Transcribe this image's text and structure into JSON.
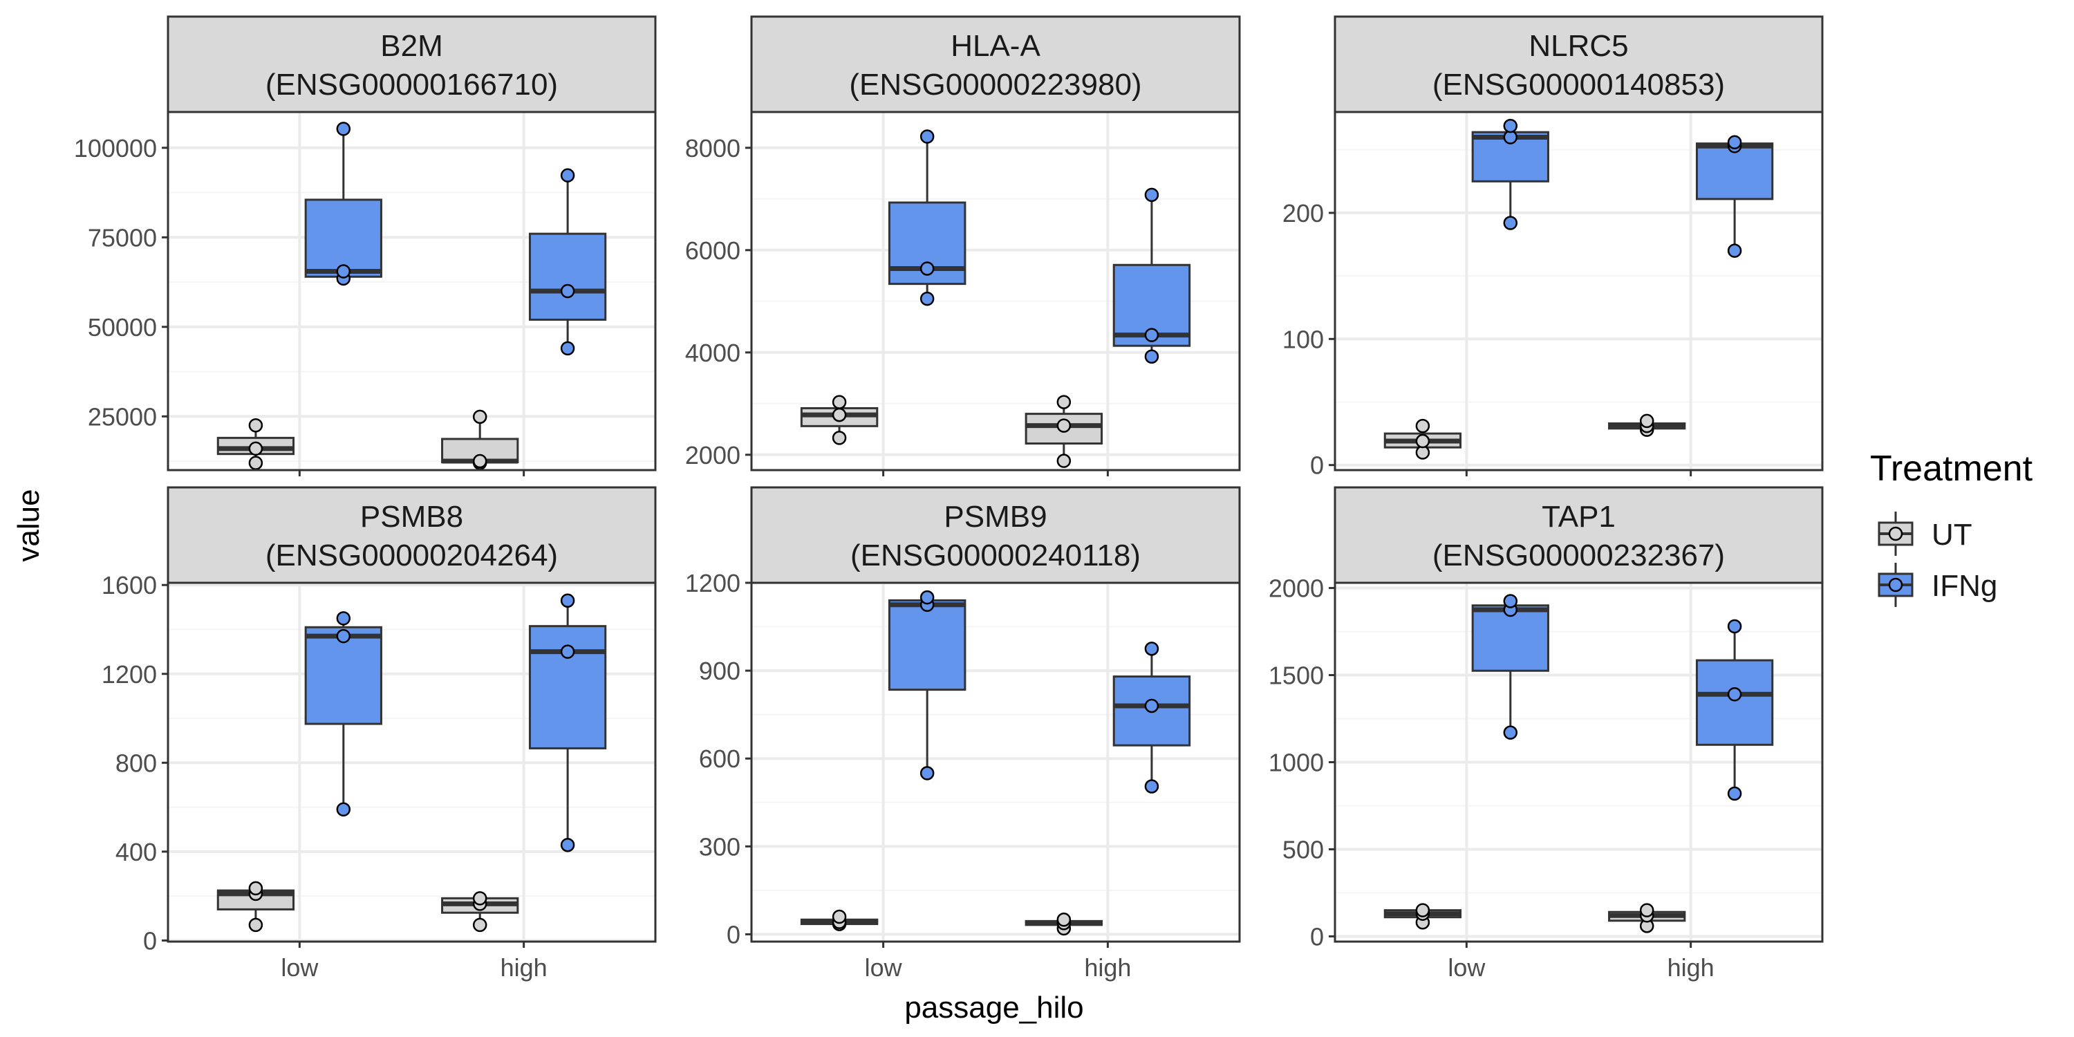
{
  "colors": {
    "UT": "#d4d4d4",
    "IFNg": "#6495ed",
    "strip_bg": "#d9d9d9",
    "grid_major": "#ebebeb",
    "grid_minor": "#f5f5f5",
    "frame": "#333333"
  },
  "chart_data": {
    "type": "box",
    "xlabel": "passage_hilo",
    "ylabel": "value",
    "categories": [
      "low",
      "high"
    ],
    "legend": {
      "title": "Treatment",
      "placement": "right",
      "entries": [
        "UT",
        "IFNg"
      ]
    },
    "facets": [
      {
        "title_line1": "B2M",
        "title_line2": "(ENSG00000166710)",
        "ylim": [
          10000,
          110000
        ],
        "yticks": [
          25000,
          50000,
          75000,
          100000
        ],
        "tick_labels": [
          "25000",
          "50000",
          "75000",
          "100000"
        ],
        "series": [
          {
            "name": "UT",
            "groups": [
              {
                "x": "low",
                "q1": 14500,
                "median": 16000,
                "q3": 19000,
                "lower": 12000,
                "upper": 22500,
                "points": [
                  12000,
                  16000,
                  22500
                ]
              },
              {
                "x": "high",
                "q1": 12200,
                "median": 12500,
                "q3": 18700,
                "lower": 12000,
                "upper": 24900,
                "points": [
                  12000,
                  12500,
                  24900
                ]
              }
            ]
          },
          {
            "name": "IFNg",
            "groups": [
              {
                "x": "low",
                "q1": 64000,
                "median": 65500,
                "q3": 85500,
                "lower": 63500,
                "upper": 105300,
                "points": [
                  63500,
                  65500,
                  105300
                ]
              },
              {
                "x": "high",
                "q1": 52000,
                "median": 60000,
                "q3": 76000,
                "lower": 44000,
                "upper": 92300,
                "points": [
                  44000,
                  60000,
                  92300
                ]
              }
            ]
          }
        ]
      },
      {
        "title_line1": "HLA-A",
        "title_line2": "(ENSG00000223980)",
        "ylim": [
          1700,
          8700
        ],
        "yticks": [
          2000,
          4000,
          6000,
          8000
        ],
        "tick_labels": [
          "2000",
          "4000",
          "6000",
          "8000"
        ],
        "series": [
          {
            "name": "UT",
            "groups": [
              {
                "x": "low",
                "q1": 2560,
                "median": 2780,
                "q3": 2910,
                "lower": 2330,
                "upper": 3030,
                "points": [
                  2330,
                  2780,
                  3030
                ]
              },
              {
                "x": "high",
                "q1": 2220,
                "median": 2570,
                "q3": 2800,
                "lower": 1880,
                "upper": 3030,
                "points": [
                  1880,
                  2570,
                  3030
                ]
              }
            ]
          },
          {
            "name": "IFNg",
            "groups": [
              {
                "x": "low",
                "q1": 5340,
                "median": 5640,
                "q3": 6930,
                "lower": 5050,
                "upper": 8220,
                "points": [
                  5050,
                  5640,
                  8220
                ]
              },
              {
                "x": "high",
                "q1": 4130,
                "median": 4340,
                "q3": 5710,
                "lower": 3920,
                "upper": 7080,
                "points": [
                  3920,
                  4340,
                  7080
                ]
              }
            ]
          }
        ]
      },
      {
        "title_line1": "NLRC5",
        "title_line2": "(ENSG00000140853)",
        "ylim": [
          -4,
          280
        ],
        "yticks": [
          0,
          100,
          200
        ],
        "tick_labels": [
          "0",
          "100",
          "200"
        ],
        "series": [
          {
            "name": "UT",
            "groups": [
              {
                "x": "low",
                "q1": 14,
                "median": 19,
                "q3": 25,
                "lower": 10,
                "upper": 31,
                "points": [
                  10,
                  19,
                  31
                ]
              },
              {
                "x": "high",
                "q1": 29,
                "median": 31,
                "q3": 33,
                "lower": 28,
                "upper": 35,
                "points": [
                  28,
                  31,
                  35
                ]
              }
            ]
          },
          {
            "name": "IFNg",
            "groups": [
              {
                "x": "low",
                "q1": 225,
                "median": 260,
                "q3": 264,
                "lower": 192,
                "upper": 269,
                "points": [
                  192,
                  260,
                  269
                ]
              },
              {
                "x": "high",
                "q1": 211,
                "median": 253,
                "q3": 255,
                "lower": 170,
                "upper": 256,
                "points": [
                  170,
                  253,
                  256
                ]
              }
            ]
          }
        ]
      },
      {
        "title_line1": "PSMB8",
        "title_line2": "(ENSG00000204264)",
        "ylim": [
          -5,
          1610
        ],
        "yticks": [
          0,
          400,
          800,
          1200,
          1600
        ],
        "tick_labels": [
          "0",
          "400",
          "800",
          "1200",
          "1600"
        ],
        "series": [
          {
            "name": "UT",
            "groups": [
              {
                "x": "low",
                "q1": 140,
                "median": 210,
                "q3": 225,
                "lower": 70,
                "upper": 235,
                "points": [
                  70,
                  210,
                  235
                ]
              },
              {
                "x": "high",
                "q1": 125,
                "median": 165,
                "q3": 190,
                "lower": 70,
                "upper": 190,
                "points": [
                  70,
                  165,
                  190
                ]
              }
            ]
          },
          {
            "name": "IFNg",
            "groups": [
              {
                "x": "low",
                "q1": 975,
                "median": 1370,
                "q3": 1410,
                "lower": 590,
                "upper": 1450,
                "points": [
                  590,
                  1370,
                  1450
                ]
              },
              {
                "x": "high",
                "q1": 865,
                "median": 1300,
                "q3": 1415,
                "lower": 430,
                "upper": 1530,
                "points": [
                  430,
                  1300,
                  1530
                ]
              }
            ]
          }
        ]
      },
      {
        "title_line1": "PSMB9",
        "title_line2": "(ENSG00000240118)",
        "ylim": [
          -25,
          1200
        ],
        "yticks": [
          0,
          300,
          600,
          900,
          1200
        ],
        "tick_labels": [
          "0",
          "300",
          "600",
          "900",
          "1200"
        ],
        "series": [
          {
            "name": "UT",
            "groups": [
              {
                "x": "low",
                "q1": 35,
                "median": 42,
                "q3": 50,
                "lower": 35,
                "upper": 60,
                "points": [
                  35,
                  42,
                  60
                ]
              },
              {
                "x": "high",
                "q1": 32,
                "median": 38,
                "q3": 45,
                "lower": 20,
                "upper": 50,
                "points": [
                  20,
                  38,
                  50
                ]
              }
            ]
          },
          {
            "name": "IFNg",
            "groups": [
              {
                "x": "low",
                "q1": 835,
                "median": 1125,
                "q3": 1140,
                "lower": 550,
                "upper": 1150,
                "points": [
                  550,
                  1125,
                  1150
                ]
              },
              {
                "x": "high",
                "q1": 645,
                "median": 780,
                "q3": 880,
                "lower": 505,
                "upper": 975,
                "points": [
                  505,
                  780,
                  975
                ]
              }
            ]
          }
        ]
      },
      {
        "title_line1": "TAP1",
        "title_line2": "(ENSG00000232367)",
        "ylim": [
          -30,
          2030
        ],
        "yticks": [
          0,
          500,
          1000,
          1500,
          2000
        ],
        "tick_labels": [
          "0",
          "500",
          "1000",
          "1500",
          "2000"
        ],
        "series": [
          {
            "name": "UT",
            "groups": [
              {
                "x": "low",
                "q1": 110,
                "median": 130,
                "q3": 150,
                "lower": 80,
                "upper": 150,
                "points": [
                  80,
                  130,
                  150
                ]
              },
              {
                "x": "high",
                "q1": 90,
                "median": 120,
                "q3": 140,
                "lower": 60,
                "upper": 150,
                "points": [
                  60,
                  120,
                  150
                ]
              }
            ]
          },
          {
            "name": "IFNg",
            "groups": [
              {
                "x": "low",
                "q1": 1525,
                "median": 1875,
                "q3": 1900,
                "lower": 1170,
                "upper": 1925,
                "points": [
                  1170,
                  1875,
                  1925
                ]
              },
              {
                "x": "high",
                "q1": 1100,
                "median": 1390,
                "q3": 1585,
                "lower": 820,
                "upper": 1780,
                "points": [
                  820,
                  1390,
                  1780
                ]
              }
            ]
          }
        ]
      }
    ]
  }
}
